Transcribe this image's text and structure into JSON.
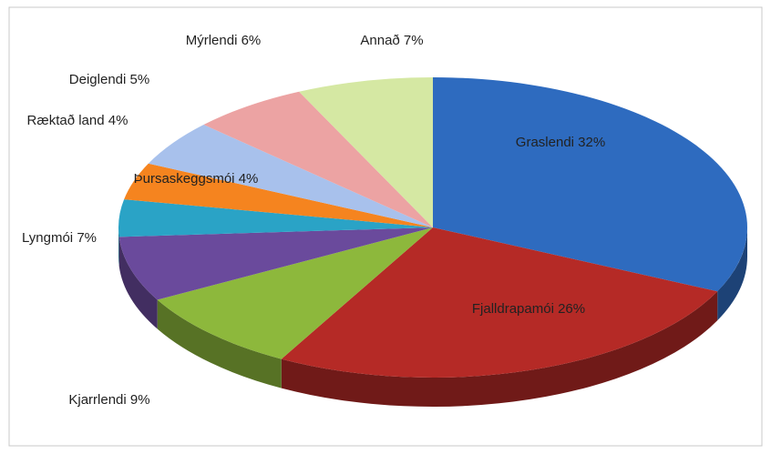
{
  "chart_data": {
    "type": "pie",
    "categories": [
      "Graslendi",
      "Fjalldrapamói",
      "Kjarrlendi",
      "Lyngmói",
      "Þursaskeggsmói",
      "Ræktað land",
      "Deiglendi",
      "Mýrlendi",
      "Annað"
    ],
    "values": [
      32,
      26,
      9,
      7,
      4,
      4,
      5,
      6,
      7
    ],
    "value_labels": [
      "32%",
      "26%",
      "9%",
      "7%",
      "4%",
      "4%",
      "5%",
      "6%",
      "7%"
    ],
    "colors": [
      "#2e6bbf",
      "#b52a26",
      "#8db83c",
      "#6a4a9c",
      "#2aa3c6",
      "#f5841f",
      "#a8c1ec",
      "#eca3a3",
      "#d5e8a3"
    ]
  }
}
